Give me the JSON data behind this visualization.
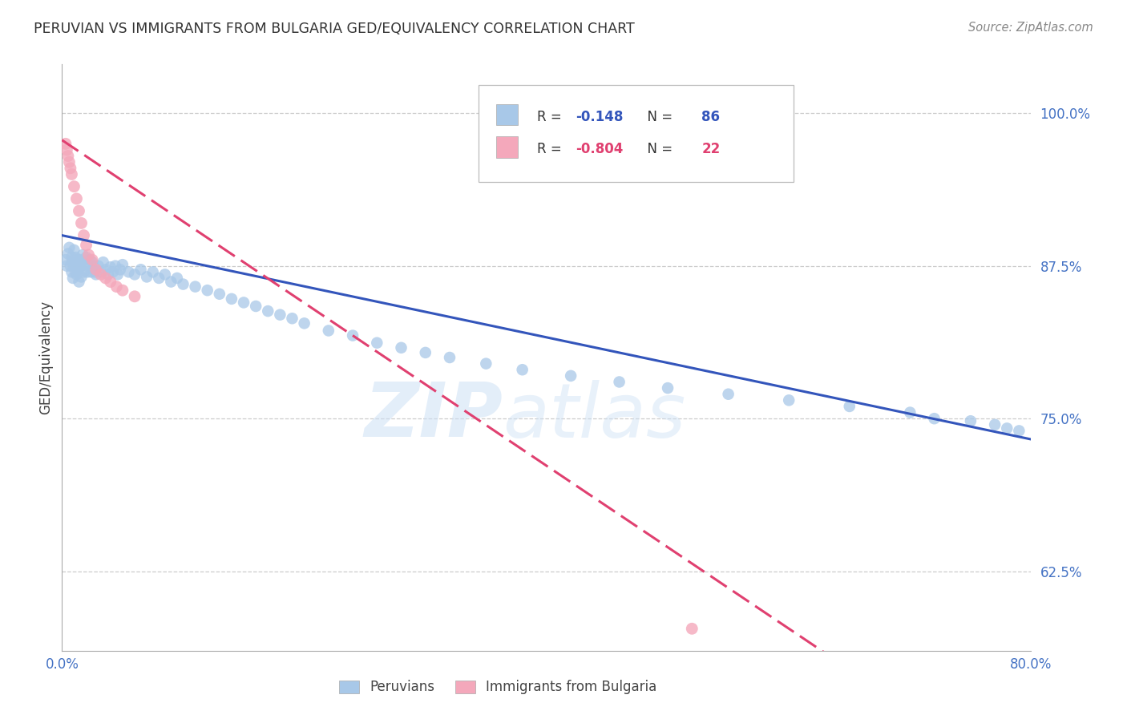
{
  "title": "PERUVIAN VS IMMIGRANTS FROM BULGARIA GED/EQUIVALENCY CORRELATION CHART",
  "source": "Source: ZipAtlas.com",
  "ylabel": "GED/Equivalency",
  "ytick_labels": [
    "100.0%",
    "87.5%",
    "75.0%",
    "62.5%"
  ],
  "ytick_values": [
    1.0,
    0.875,
    0.75,
    0.625
  ],
  "xlim": [
    0.0,
    0.8
  ],
  "ylim": [
    0.56,
    1.04
  ],
  "blue_R": -0.148,
  "blue_N": 86,
  "pink_R": -0.804,
  "pink_N": 22,
  "blue_color": "#a8c8e8",
  "pink_color": "#f4a8bb",
  "trendline_blue": "#3355bb",
  "trendline_pink": "#e04070",
  "legend_label_blue": "Peruvians",
  "legend_label_pink": "Immigrants from Bulgaria",
  "blue_points_x": [
    0.003,
    0.004,
    0.005,
    0.006,
    0.007,
    0.008,
    0.008,
    0.009,
    0.009,
    0.01,
    0.01,
    0.011,
    0.011,
    0.012,
    0.012,
    0.013,
    0.013,
    0.014,
    0.014,
    0.015,
    0.015,
    0.016,
    0.016,
    0.017,
    0.018,
    0.019,
    0.02,
    0.021,
    0.022,
    0.023,
    0.024,
    0.025,
    0.026,
    0.027,
    0.028,
    0.03,
    0.032,
    0.034,
    0.036,
    0.038,
    0.04,
    0.042,
    0.044,
    0.046,
    0.048,
    0.05,
    0.055,
    0.06,
    0.065,
    0.07,
    0.075,
    0.08,
    0.085,
    0.09,
    0.095,
    0.1,
    0.11,
    0.12,
    0.13,
    0.14,
    0.15,
    0.16,
    0.17,
    0.18,
    0.19,
    0.2,
    0.22,
    0.24,
    0.26,
    0.28,
    0.3,
    0.32,
    0.35,
    0.38,
    0.42,
    0.46,
    0.5,
    0.55,
    0.6,
    0.65,
    0.7,
    0.72,
    0.75,
    0.77,
    0.78,
    0.79
  ],
  "blue_points_y": [
    0.88,
    0.875,
    0.885,
    0.89,
    0.875,
    0.87,
    0.882,
    0.878,
    0.865,
    0.888,
    0.875,
    0.87,
    0.882,
    0.875,
    0.868,
    0.88,
    0.872,
    0.876,
    0.862,
    0.874,
    0.88,
    0.866,
    0.878,
    0.884,
    0.87,
    0.876,
    0.882,
    0.87,
    0.876,
    0.88,
    0.87,
    0.878,
    0.875,
    0.87,
    0.868,
    0.875,
    0.87,
    0.878,
    0.872,
    0.868,
    0.874,
    0.87,
    0.875,
    0.868,
    0.872,
    0.876,
    0.87,
    0.868,
    0.872,
    0.866,
    0.87,
    0.865,
    0.868,
    0.862,
    0.865,
    0.86,
    0.858,
    0.855,
    0.852,
    0.848,
    0.845,
    0.842,
    0.838,
    0.835,
    0.832,
    0.828,
    0.822,
    0.818,
    0.812,
    0.808,
    0.804,
    0.8,
    0.795,
    0.79,
    0.785,
    0.78,
    0.775,
    0.77,
    0.765,
    0.76,
    0.755,
    0.75,
    0.748,
    0.745,
    0.742,
    0.74
  ],
  "pink_points_x": [
    0.003,
    0.004,
    0.005,
    0.006,
    0.007,
    0.008,
    0.01,
    0.012,
    0.014,
    0.016,
    0.018,
    0.02,
    0.022,
    0.025,
    0.028,
    0.032,
    0.036,
    0.04,
    0.045,
    0.05,
    0.06,
    0.52
  ],
  "pink_points_y": [
    0.975,
    0.97,
    0.965,
    0.96,
    0.955,
    0.95,
    0.94,
    0.93,
    0.92,
    0.91,
    0.9,
    0.892,
    0.884,
    0.88,
    0.872,
    0.868,
    0.865,
    0.862,
    0.858,
    0.855,
    0.85,
    0.578
  ],
  "blue_trend_x": [
    0.0,
    0.8
  ],
  "blue_trend_y": [
    0.9,
    0.733
  ],
  "pink_trend_x": [
    0.0,
    0.63
  ],
  "pink_trend_y": [
    0.978,
    0.558
  ]
}
